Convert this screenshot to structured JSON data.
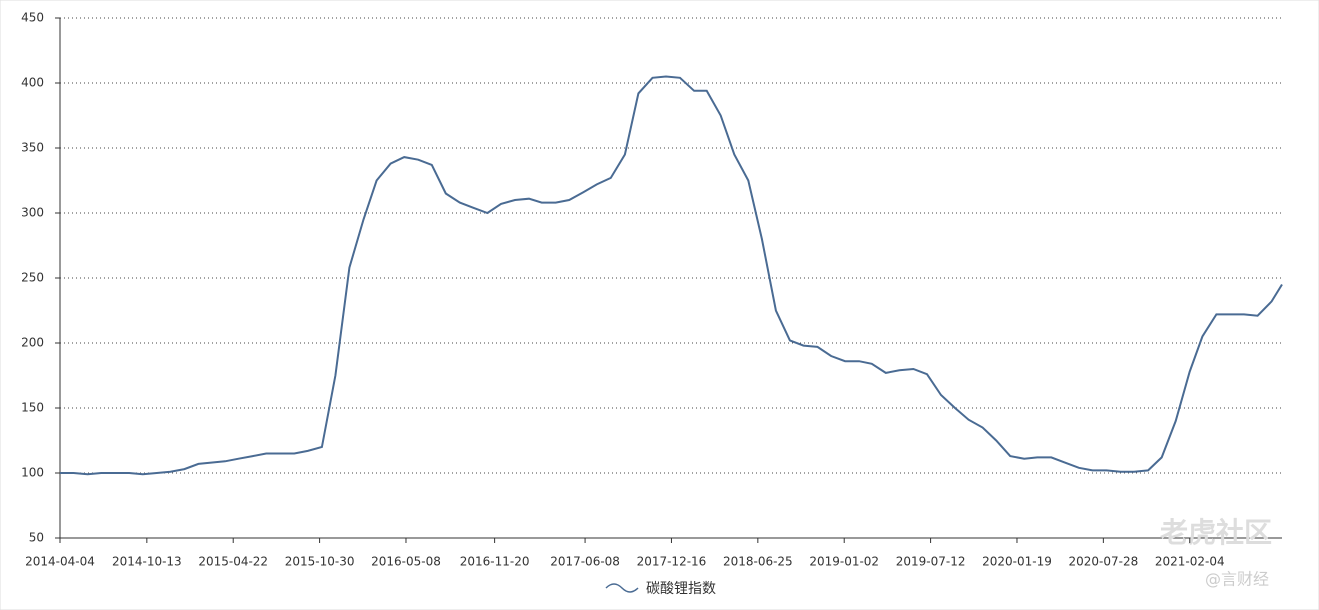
{
  "chart_data": {
    "type": "line",
    "x": [
      "2014-04-04",
      "2014-05-04",
      "2014-06-04",
      "2014-07-04",
      "2014-08-04",
      "2014-09-04",
      "2014-10-04",
      "2014-11-04",
      "2014-12-04",
      "2015-01-04",
      "2015-02-04",
      "2015-03-04",
      "2015-04-04",
      "2015-05-04",
      "2015-06-04",
      "2015-07-04",
      "2015-08-04",
      "2015-09-04",
      "2015-10-04",
      "2015-11-04",
      "2015-12-04",
      "2016-01-04",
      "2016-02-04",
      "2016-03-04",
      "2016-04-04",
      "2016-05-04",
      "2016-06-04",
      "2016-07-04",
      "2016-08-04",
      "2016-09-04",
      "2016-10-04",
      "2016-11-04",
      "2016-12-04",
      "2017-01-04",
      "2017-02-04",
      "2017-03-04",
      "2017-04-04",
      "2017-05-04",
      "2017-06-04",
      "2017-07-04",
      "2017-08-04",
      "2017-09-04",
      "2017-10-04",
      "2017-11-04",
      "2017-12-04",
      "2018-01-04",
      "2018-02-04",
      "2018-03-04",
      "2018-04-04",
      "2018-05-04",
      "2018-06-04",
      "2018-07-04",
      "2018-08-04",
      "2018-09-04",
      "2018-10-04",
      "2018-11-04",
      "2018-12-04",
      "2019-01-04",
      "2019-02-04",
      "2019-03-04",
      "2019-04-04",
      "2019-05-04",
      "2019-06-04",
      "2019-07-04",
      "2019-08-04",
      "2019-09-04",
      "2019-10-04",
      "2019-11-04",
      "2019-12-04",
      "2020-01-04",
      "2020-02-04",
      "2020-03-04",
      "2020-04-04",
      "2020-05-04",
      "2020-06-04",
      "2020-07-04",
      "2020-08-04",
      "2020-09-04",
      "2020-10-04",
      "2020-11-04",
      "2020-12-04",
      "2021-01-04",
      "2021-02-04",
      "2021-03-04",
      "2021-04-04",
      "2021-05-04",
      "2021-06-04",
      "2021-07-04",
      "2021-08-04",
      "2021-08-27"
    ],
    "series": [
      {
        "name": "碳酸锂指数",
        "color": "#4a6b93",
        "values": [
          100,
          100,
          99,
          100,
          100,
          100,
          99,
          100,
          101,
          103,
          107,
          108,
          109,
          111,
          113,
          115,
          115,
          115,
          117,
          120,
          175,
          258,
          295,
          325,
          338,
          343,
          341,
          337,
          315,
          308,
          304,
          300,
          307,
          310,
          311,
          308,
          308,
          310,
          316,
          322,
          327,
          345,
          392,
          404,
          405,
          404,
          394,
          394,
          375,
          345,
          325,
          280,
          225,
          202,
          198,
          197,
          190,
          186,
          186,
          184,
          177,
          179,
          180,
          176,
          160,
          150,
          141,
          135,
          125,
          113,
          111,
          112,
          112,
          108,
          104,
          102,
          102,
          101,
          101,
          102,
          112,
          140,
          178,
          205,
          222,
          222,
          222,
          221,
          232,
          245
        ]
      }
    ],
    "xlim": [
      "2014-04-04",
      "2021-08-27"
    ],
    "xticks": [
      "2014-04-04",
      "2014-10-13",
      "2015-04-22",
      "2015-10-30",
      "2016-05-08",
      "2016-11-20",
      "2017-06-08",
      "2017-12-16",
      "2018-06-25",
      "2019-01-02",
      "2019-07-12",
      "2020-01-19",
      "2020-07-28",
      "2021-02-04"
    ],
    "ylim": [
      50,
      450
    ],
    "yticks": [
      50,
      100,
      150,
      200,
      250,
      300,
      350,
      400,
      450
    ],
    "grid": true
  },
  "watermark": {
    "text": "老虎社区",
    "handle": "@言财经"
  }
}
